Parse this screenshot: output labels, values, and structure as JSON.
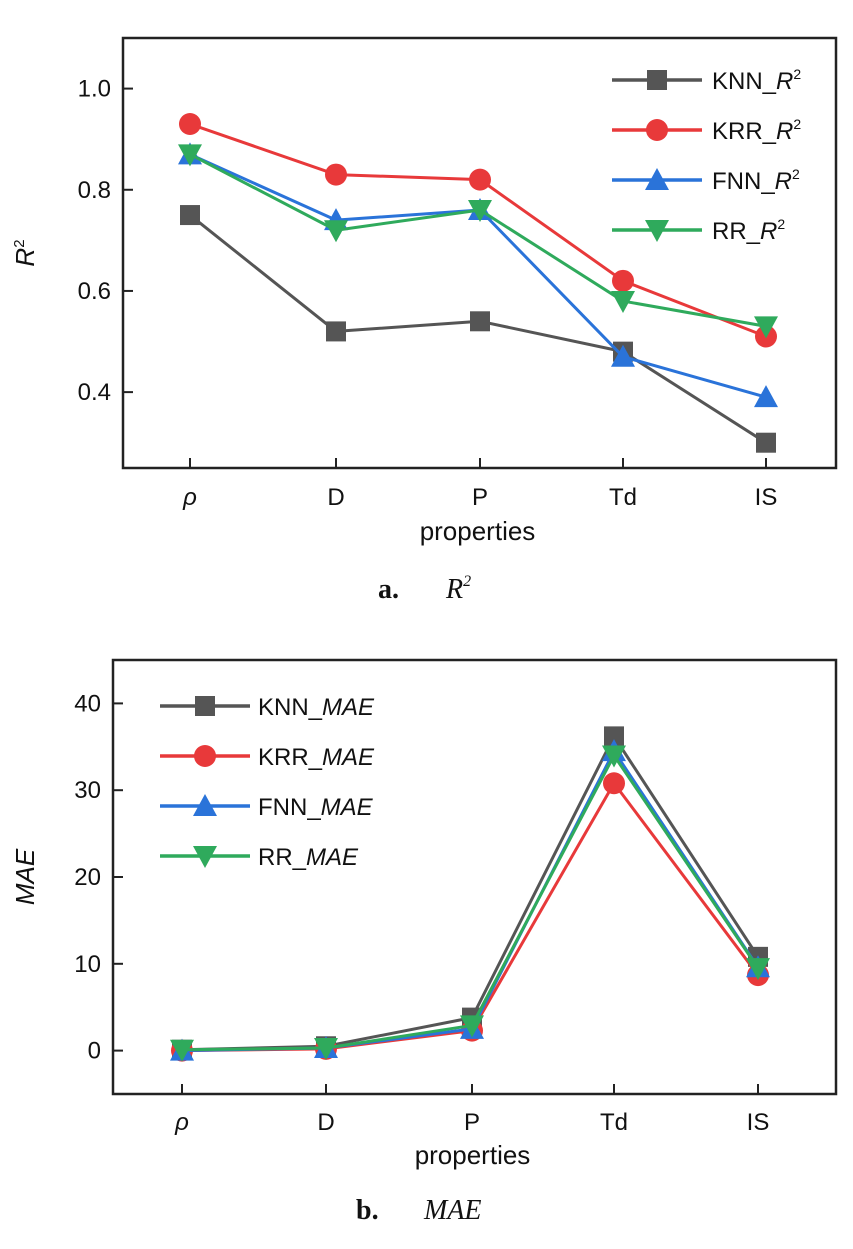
{
  "chart_data": [
    {
      "type": "line",
      "panel": "a.",
      "caption": "R",
      "caption_sup": "2",
      "categories": [
        "ρ",
        "D",
        "P",
        "Td",
        "IS"
      ],
      "xlabel": "properties",
      "ylabel": "R",
      "ylabel_sup": "2",
      "ylim": [
        0.25,
        1.1
      ],
      "yticks": [
        "0.4",
        "0.6",
        "0.8",
        "1.0"
      ],
      "ytick_values": [
        0.4,
        0.6,
        0.8,
        1.0
      ],
      "legend_position": "top-right",
      "series": [
        {
          "name": "KNN_",
          "name_italic": "R",
          "name_sup": "2",
          "color": "#555555",
          "marker": "square",
          "values": [
            0.75,
            0.52,
            0.54,
            0.48,
            0.3
          ]
        },
        {
          "name": "KRR_",
          "name_italic": "R",
          "name_sup": "2",
          "color": "#e8393a",
          "marker": "circle",
          "values": [
            0.93,
            0.83,
            0.82,
            0.62,
            0.51
          ]
        },
        {
          "name": "FNN_",
          "name_italic": "R",
          "name_sup": "2",
          "color": "#2a73d9",
          "marker": "triangle-up",
          "values": [
            0.87,
            0.74,
            0.76,
            0.47,
            0.39
          ]
        },
        {
          "name": "RR_",
          "name_italic": "R",
          "name_sup": "2",
          "color": "#2faa5c",
          "marker": "triangle-down",
          "values": [
            0.87,
            0.72,
            0.76,
            0.58,
            0.53
          ]
        }
      ]
    },
    {
      "type": "line",
      "panel": "b.",
      "caption": "MAE",
      "caption_sup": "",
      "categories": [
        "ρ",
        "D",
        "P",
        "Td",
        "IS"
      ],
      "xlabel": "properties",
      "ylabel": "MAE",
      "ylabel_sup": "",
      "ylim": [
        -5,
        45
      ],
      "yticks": [
        "0",
        "10",
        "20",
        "30",
        "40"
      ],
      "ytick_values": [
        0,
        10,
        20,
        30,
        40
      ],
      "legend_position": "top-left",
      "series": [
        {
          "name": "KNN_",
          "name_italic": "MAE",
          "name_sup": "",
          "color": "#555555",
          "marker": "square",
          "values": [
            0.1,
            0.5,
            3.8,
            36.2,
            10.8
          ]
        },
        {
          "name": "KRR_",
          "name_italic": "MAE",
          "name_sup": "",
          "color": "#e8393a",
          "marker": "circle",
          "values": [
            0.0,
            0.2,
            2.3,
            30.8,
            8.7
          ]
        },
        {
          "name": "FNN_",
          "name_italic": "MAE",
          "name_sup": "",
          "color": "#2a73d9",
          "marker": "triangle-up",
          "values": [
            0.0,
            0.3,
            2.5,
            34.5,
            9.6
          ]
        },
        {
          "name": "RR_",
          "name_italic": "MAE",
          "name_sup": "",
          "color": "#2faa5c",
          "marker": "triangle-down",
          "values": [
            0.1,
            0.3,
            2.9,
            34.0,
            9.5
          ]
        }
      ]
    }
  ]
}
